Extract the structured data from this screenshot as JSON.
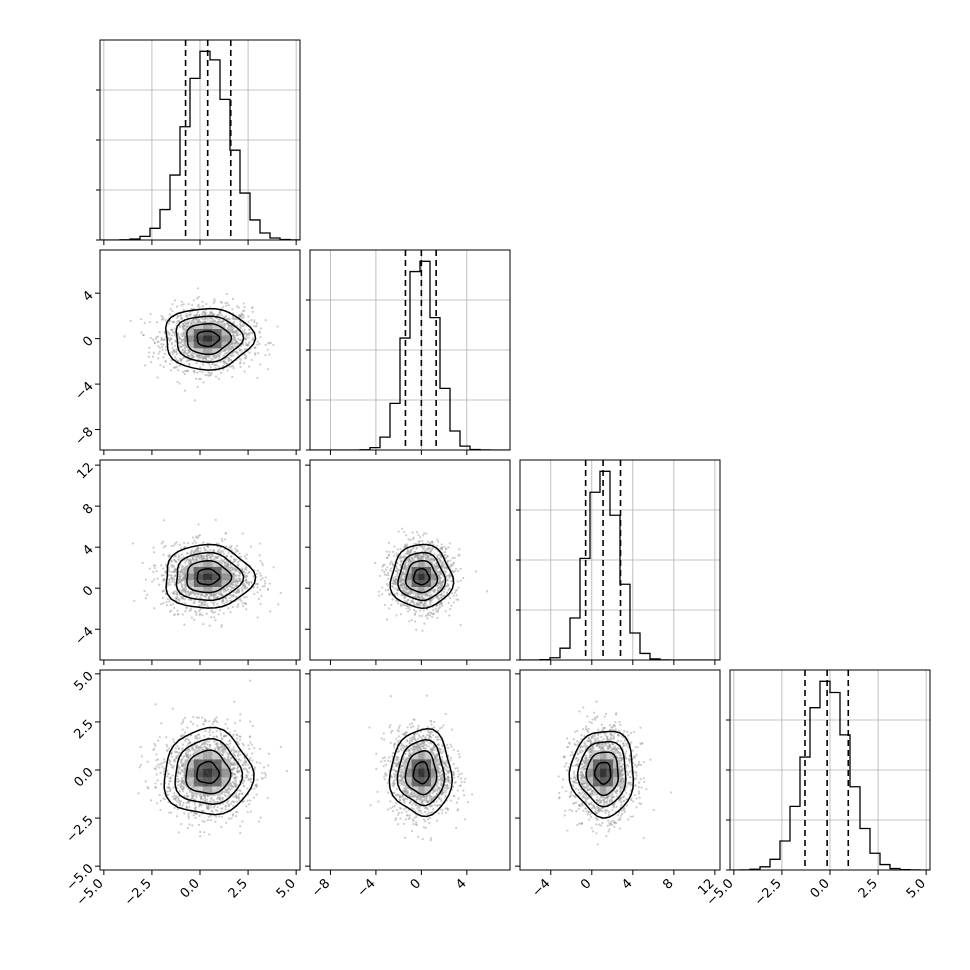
{
  "chart_data": {
    "type": "corner",
    "grid": true,
    "variables": [
      {
        "xlim": [
          -5.2,
          5.2
        ],
        "ticks": [
          -5.0,
          -2.5,
          0.0,
          2.5,
          5.0
        ],
        "tick_labels": [
          "−5.0",
          "−2.5",
          "0.0",
          "2.5",
          "5.0"
        ],
        "quantiles": [
          -0.75,
          0.4,
          1.6
        ],
        "mean": 0.4,
        "sd": 1.15,
        "hist_max": 0.35
      },
      {
        "xlim": [
          -9.8,
          7.8
        ],
        "ticks": [
          -8,
          -4,
          0,
          4
        ],
        "tick_labels": [
          "−8",
          "−4",
          "0",
          "4"
        ],
        "quantiles": [
          -1.4,
          0.0,
          1.3
        ],
        "mean": 0.0,
        "sd": 1.35,
        "hist_max": 0.32
      },
      {
        "xlim": [
          -7.0,
          12.5
        ],
        "ticks": [
          -4,
          0,
          4,
          8,
          12
        ],
        "tick_labels": [
          "−4",
          "0",
          "4",
          "8",
          "12"
        ],
        "quantiles": [
          -0.6,
          1.1,
          2.8
        ],
        "mean": 1.1,
        "sd": 1.55,
        "hist_max": 0.26
      },
      {
        "xlim": [
          -5.2,
          5.2
        ],
        "ticks": [
          -5.0,
          -2.5,
          0.0,
          2.5,
          5.0
        ],
        "tick_labels": [
          "−5.0",
          "−2.5",
          "0.0",
          "2.5",
          "5.0"
        ],
        "quantiles": [
          -1.3,
          -0.15,
          0.95
        ],
        "mean": -0.15,
        "sd": 1.12,
        "hist_max": 0.36
      }
    ],
    "y_axes": {
      "row1": {
        "ticks": [
          4,
          0,
          -4,
          -8
        ],
        "tick_labels": [
          "4",
          "0",
          "−4",
          "−8"
        ]
      },
      "row2": {
        "ticks": [
          12,
          8,
          4,
          0,
          -4
        ],
        "tick_labels": [
          "12",
          "8",
          "4",
          "0",
          "−4"
        ]
      },
      "row3": {
        "ticks": [
          5.0,
          2.5,
          0.0,
          -2.5,
          -5.0
        ],
        "tick_labels": [
          "5.0",
          "2.5",
          "0.0",
          "−2.5",
          "−5.0"
        ]
      }
    },
    "colors": {
      "lines": "#000000",
      "scatter": "#9a9a9a",
      "grid": "#b0b0b0"
    }
  }
}
